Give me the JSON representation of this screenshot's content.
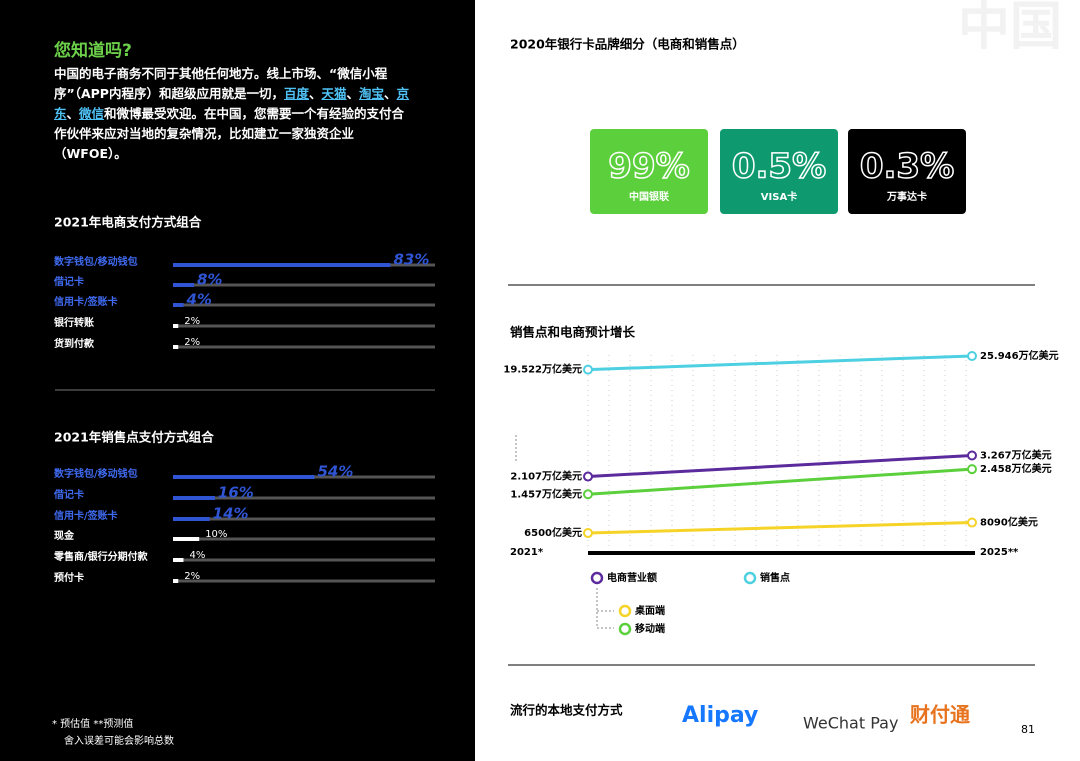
{
  "watermark": "中国",
  "intro": {
    "title": "您知道吗?",
    "parts": [
      "中国的电子商务不同于其他任何地方。线上市场、“微信小程序”（APP内程序）和超级应用就是一切，",
      "百度",
      "、",
      "天猫",
      "、",
      "淘宝",
      "、",
      "京东",
      "、",
      "微信",
      "和微博最受欢迎。在中国，您需要一个有经验的支付合作伙伴来应对当地的复杂情况，比如建立一家独资企业（WFOE）。"
    ]
  },
  "ecommerce_mix": {
    "title": "2021年电商支付方式组合",
    "items": [
      {
        "label": "数字钱包/移动钱包",
        "value": 83,
        "value_label": "83%",
        "color": "#2f55d4"
      },
      {
        "label": "借记卡",
        "value": 8,
        "value_label": "8%",
        "color": "#2f55d4"
      },
      {
        "label": "信用卡/签账卡",
        "value": 4,
        "value_label": "4%",
        "color": "#2f55d4"
      },
      {
        "label": "银行转账",
        "value": 2,
        "value_label": "2%",
        "color": "#ffffff"
      },
      {
        "label": "货到付款",
        "value": 2,
        "value_label": "2%",
        "color": "#ffffff"
      }
    ]
  },
  "pos_mix": {
    "title": "2021年销售点支付方式组合",
    "items": [
      {
        "label": "数字钱包/移动钱包",
        "value": 54,
        "value_label": "54%",
        "color": "#2f55d4"
      },
      {
        "label": "借记卡",
        "value": 16,
        "value_label": "16%",
        "color": "#2f55d4"
      },
      {
        "label": "信用卡/签账卡",
        "value": 14,
        "value_label": "14%",
        "color": "#2f55d4"
      },
      {
        "label": "现金",
        "value": 10,
        "value_label": "10%",
        "color": "#ffffff"
      },
      {
        "label": "零售商/银行分期付款",
        "value": 4,
        "value_label": "4%",
        "color": "#ffffff"
      },
      {
        "label": "预付卡",
        "value": 2,
        "value_label": "2%",
        "color": "#ffffff"
      }
    ]
  },
  "footnotes": [
    "* 预估值   **预测值",
    "舍入误差可能会影响总数"
  ],
  "brands": {
    "title": "2020年银行卡品牌细分（电商和销售点）",
    "items": [
      {
        "value": 99,
        "value_label": "99%",
        "label": "中国银联",
        "color": "#5ccf3c"
      },
      {
        "value": 0.5,
        "value_label": "0.5%",
        "label": "VISA卡",
        "color": "#0e9a6e"
      },
      {
        "value": 0.3,
        "value_label": "0.3%",
        "label": "万事达卡",
        "color": "#000000"
      }
    ]
  },
  "growth": {
    "title": "销售点和电商预计增长",
    "start_label": "2021*",
    "end_label": "2025**",
    "series": [
      {
        "name": "销售点",
        "color": "#4dd0e1",
        "values": [
          19.522,
          25.946
        ],
        "value_labels": [
          "19.522万亿美元",
          "25.946万亿美元"
        ]
      },
      {
        "name": "电商营业额",
        "color": "#5b2a9c",
        "values": [
          2.107,
          3.267
        ],
        "value_labels": [
          "2.107万亿美元",
          "3.267万亿美元"
        ]
      },
      {
        "name": "移动端",
        "color": "#5ccf3c",
        "values": [
          1.457,
          2.458
        ],
        "value_labels": [
          "1.457万亿美元",
          "2.458万亿美元"
        ]
      },
      {
        "name": "桌面端",
        "color": "#f5d327",
        "values": [
          0.65,
          0.809
        ],
        "value_labels": [
          "6500亿美元",
          "8090亿美元"
        ]
      }
    ]
  },
  "local": {
    "title": "流行的本地支付方式",
    "logos": [
      "Alipay",
      "WeChat Pay",
      "财付通"
    ]
  },
  "page_number": "81"
}
